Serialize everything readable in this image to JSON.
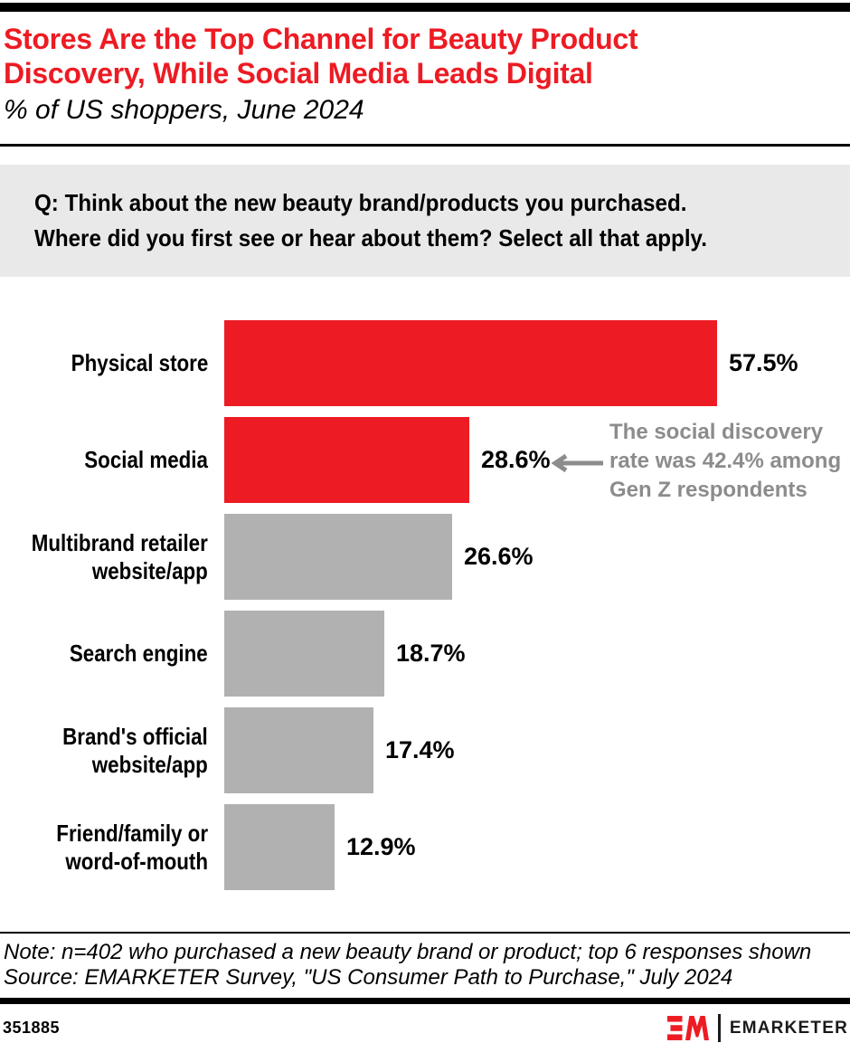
{
  "header": {
    "title": "Stores Are the Top Channel for Beauty Product\nDiscovery, While Social Media Leads Digital",
    "subtitle": "% of US shoppers, June 2024"
  },
  "question": "Q: Think about the new beauty brand/products you purchased.\nWhere did you first see or hear about them? Select all that apply.",
  "chart_data": {
    "type": "bar",
    "orientation": "horizontal",
    "title": "Stores Are the Top Channel for Beauty Product Discovery, While Social Media Leads Digital",
    "subtitle": "% of US shoppers, June 2024",
    "unit": "% of US shoppers",
    "categories": [
      "Physical store",
      "Social media",
      "Multibrand retailer\nwebsite/app",
      "Search engine",
      "Brand's official\nwebsite/app",
      "Friend/family or\nword-of-mouth"
    ],
    "values": [
      57.5,
      28.6,
      26.6,
      18.7,
      17.4,
      12.9
    ],
    "value_labels": [
      "57.5%",
      "28.6%",
      "26.6%",
      "18.7%",
      "17.4%",
      "12.9%"
    ],
    "bar_colors": [
      "#ED1B23",
      "#ED1B23",
      "#B1B1B1",
      "#B1B1B1",
      "#B1B1B1",
      "#B1B1B1"
    ],
    "xlim": [
      0,
      60
    ],
    "grid": false,
    "legend": "none",
    "annotation": {
      "text": "The social discovery\nrate was 42.4% among\nGen Z respondents",
      "color": "#8C8C8C",
      "arrow_direction": "left",
      "attached_to": "Social media"
    }
  },
  "notes": {
    "note": "Note: n=402 who purchased a new beauty brand or product; top 6 responses shown",
    "source": "Source: EMARKETER Survey, \"US Consumer Path to Purchase,\" July 2024"
  },
  "footer": {
    "chart_id": "351885",
    "brand": "EMARKETER"
  },
  "colors": {
    "accent_red": "#ED1B23",
    "bar_gray": "#B1B1B1",
    "annotation_gray": "#8C8C8C",
    "question_bg": "#E9E9E9",
    "black": "#000000"
  }
}
